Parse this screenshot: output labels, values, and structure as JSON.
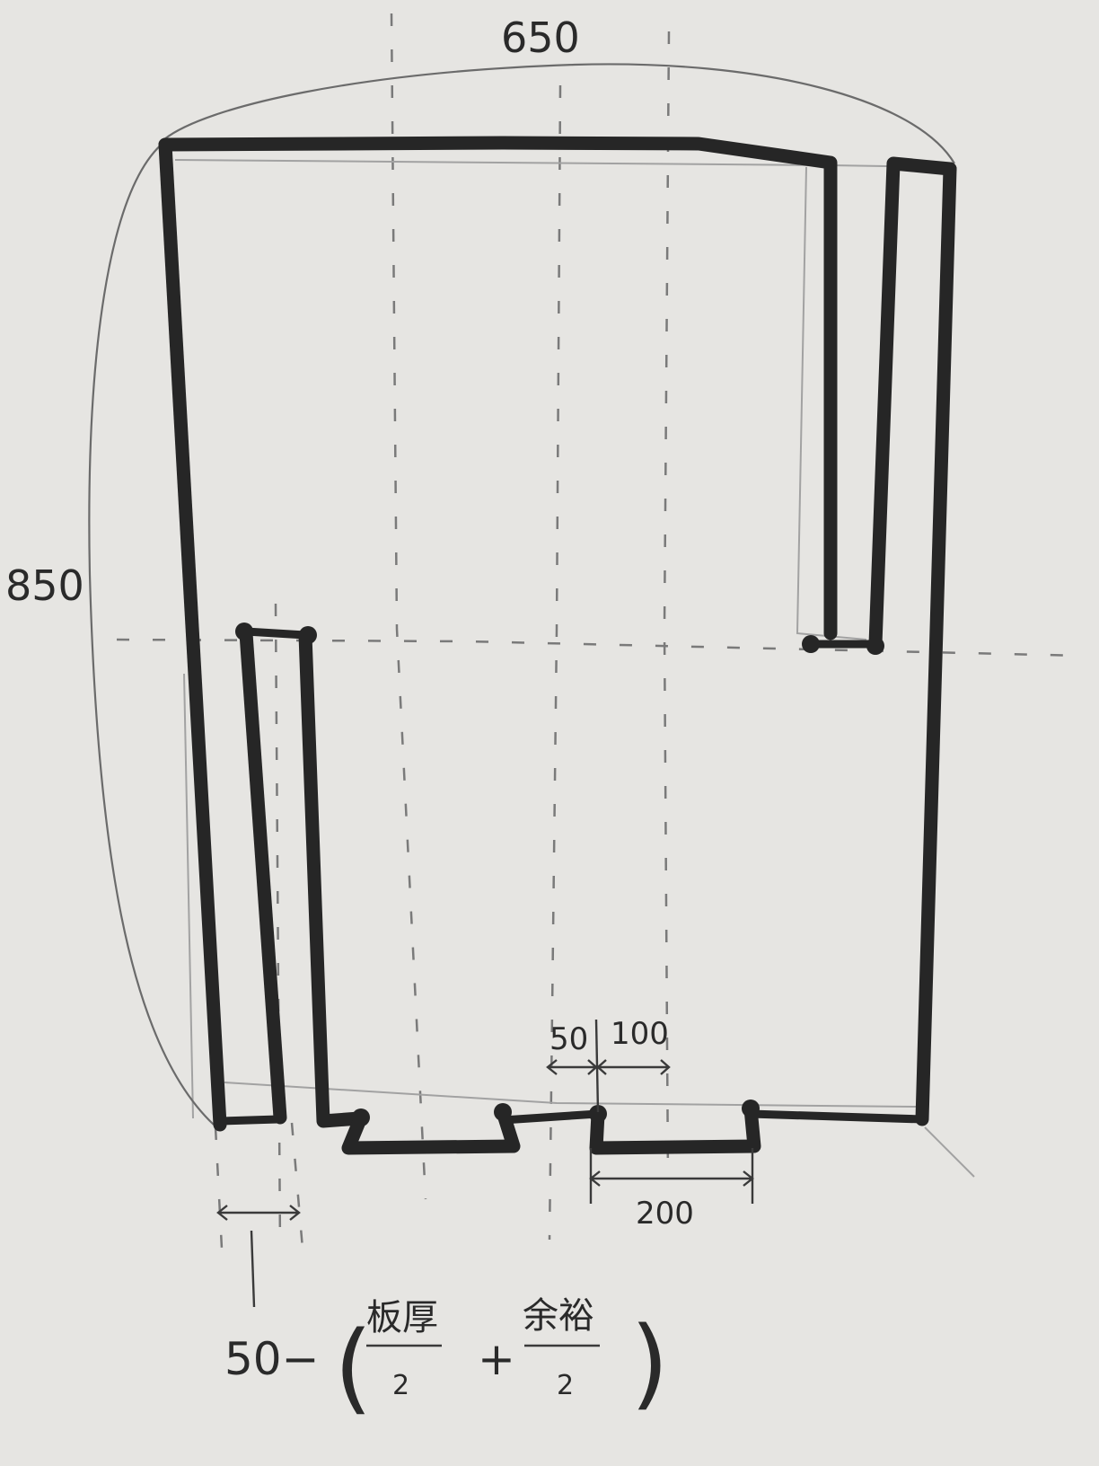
{
  "dimensions": {
    "width_label": "650",
    "height_label": "850",
    "offset_50_label": "50",
    "offset_100_label": "100",
    "span_200_label": "200"
  },
  "formula": {
    "prefix": "50−",
    "open_paren": "(",
    "term1_numerator": "板厚",
    "term1_denominator": "2",
    "plus": "+",
    "term2_numerator": "余裕",
    "term2_denominator": "2",
    "close_paren": ")"
  }
}
